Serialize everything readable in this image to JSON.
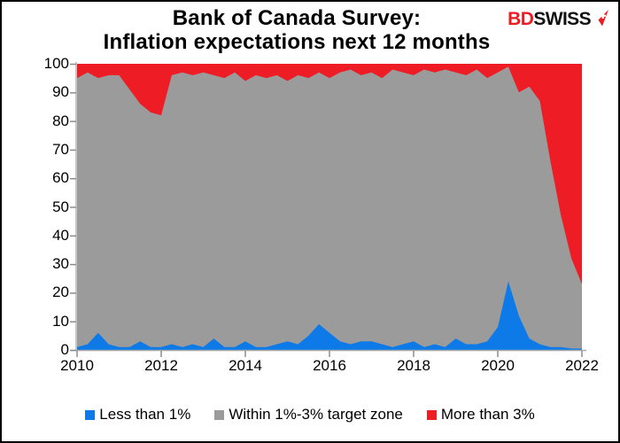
{
  "header": {
    "title_line1": "Bank of Canada Survey:",
    "title_line2": "Inflation expectations next 12 months",
    "logo": {
      "part1": "BD",
      "part2": "SWISS"
    }
  },
  "chart_data": {
    "type": "area",
    "stacked": true,
    "stack_total": 100,
    "title": "Bank of Canada Survey: Inflation expectations next 12 months",
    "xlabel": "",
    "ylabel": "",
    "xlim": [
      2010,
      2022
    ],
    "ylim": [
      0,
      100
    ],
    "grid": false,
    "legend_position": "bottom",
    "x_ticks": [
      2010,
      2012,
      2014,
      2016,
      2018,
      2020,
      2022
    ],
    "y_ticks": [
      0,
      10,
      20,
      30,
      40,
      50,
      60,
      70,
      80,
      90,
      100
    ],
    "x_unit": "year (quarterly survey)",
    "y_unit": "percent of respondents",
    "x": [
      2010,
      2010.25,
      2010.5,
      2010.75,
      2011,
      2011.25,
      2011.5,
      2011.75,
      2012,
      2012.25,
      2012.5,
      2012.75,
      2013,
      2013.25,
      2013.5,
      2013.75,
      2014,
      2014.25,
      2014.5,
      2014.75,
      2015,
      2015.25,
      2015.5,
      2015.75,
      2016,
      2016.25,
      2016.5,
      2016.75,
      2017,
      2017.25,
      2017.5,
      2017.75,
      2018,
      2018.25,
      2018.5,
      2018.75,
      2019,
      2019.25,
      2019.5,
      2019.75,
      2020,
      2020.25,
      2020.5,
      2020.75,
      2021,
      2021.25,
      2021.5,
      2021.75,
      2022
    ],
    "series": [
      {
        "name": "Less than 1%",
        "color": "#0e7ae8",
        "values": [
          1,
          2,
          6,
          2,
          1,
          1,
          3,
          1,
          1,
          2,
          1,
          2,
          1,
          4,
          1,
          1,
          3,
          1,
          1,
          2,
          3,
          2,
          5,
          9,
          6,
          3,
          2,
          3,
          3,
          2,
          1,
          2,
          3,
          1,
          2,
          1,
          4,
          2,
          2,
          3,
          8,
          24,
          12,
          4,
          2,
          1,
          1,
          0.5,
          0.5
        ]
      },
      {
        "name": "Within 1%-3% target zone",
        "color": "#9b9b9b",
        "values": [
          94,
          95,
          89,
          94,
          95,
          90,
          83,
          82,
          81,
          94,
          96,
          94,
          96,
          92,
          94,
          96,
          91,
          95,
          94,
          94,
          91,
          94,
          90,
          88,
          89,
          94,
          96,
          93,
          94,
          93,
          97,
          95,
          93,
          97,
          95,
          97,
          93,
          94,
          96,
          92,
          89,
          75,
          78,
          88,
          85,
          65,
          46,
          31.5,
          22.5
        ]
      },
      {
        "name": "More than 3%",
        "color": "#ee1c25",
        "values": [
          5,
          3,
          5,
          4,
          4,
          9,
          14,
          17,
          18,
          4,
          3,
          4,
          3,
          4,
          5,
          3,
          6,
          4,
          5,
          4,
          6,
          4,
          5,
          3,
          5,
          3,
          2,
          4,
          3,
          5,
          2,
          3,
          4,
          2,
          3,
          2,
          3,
          4,
          2,
          5,
          3,
          1,
          10,
          8,
          13,
          34,
          53,
          68,
          77
        ]
      }
    ]
  },
  "colors": {
    "axis": "#a8a8a8",
    "tick": "#8c8c8c",
    "text": "#000000",
    "logo_red": "#ed1c24",
    "background": "#ffffff"
  }
}
